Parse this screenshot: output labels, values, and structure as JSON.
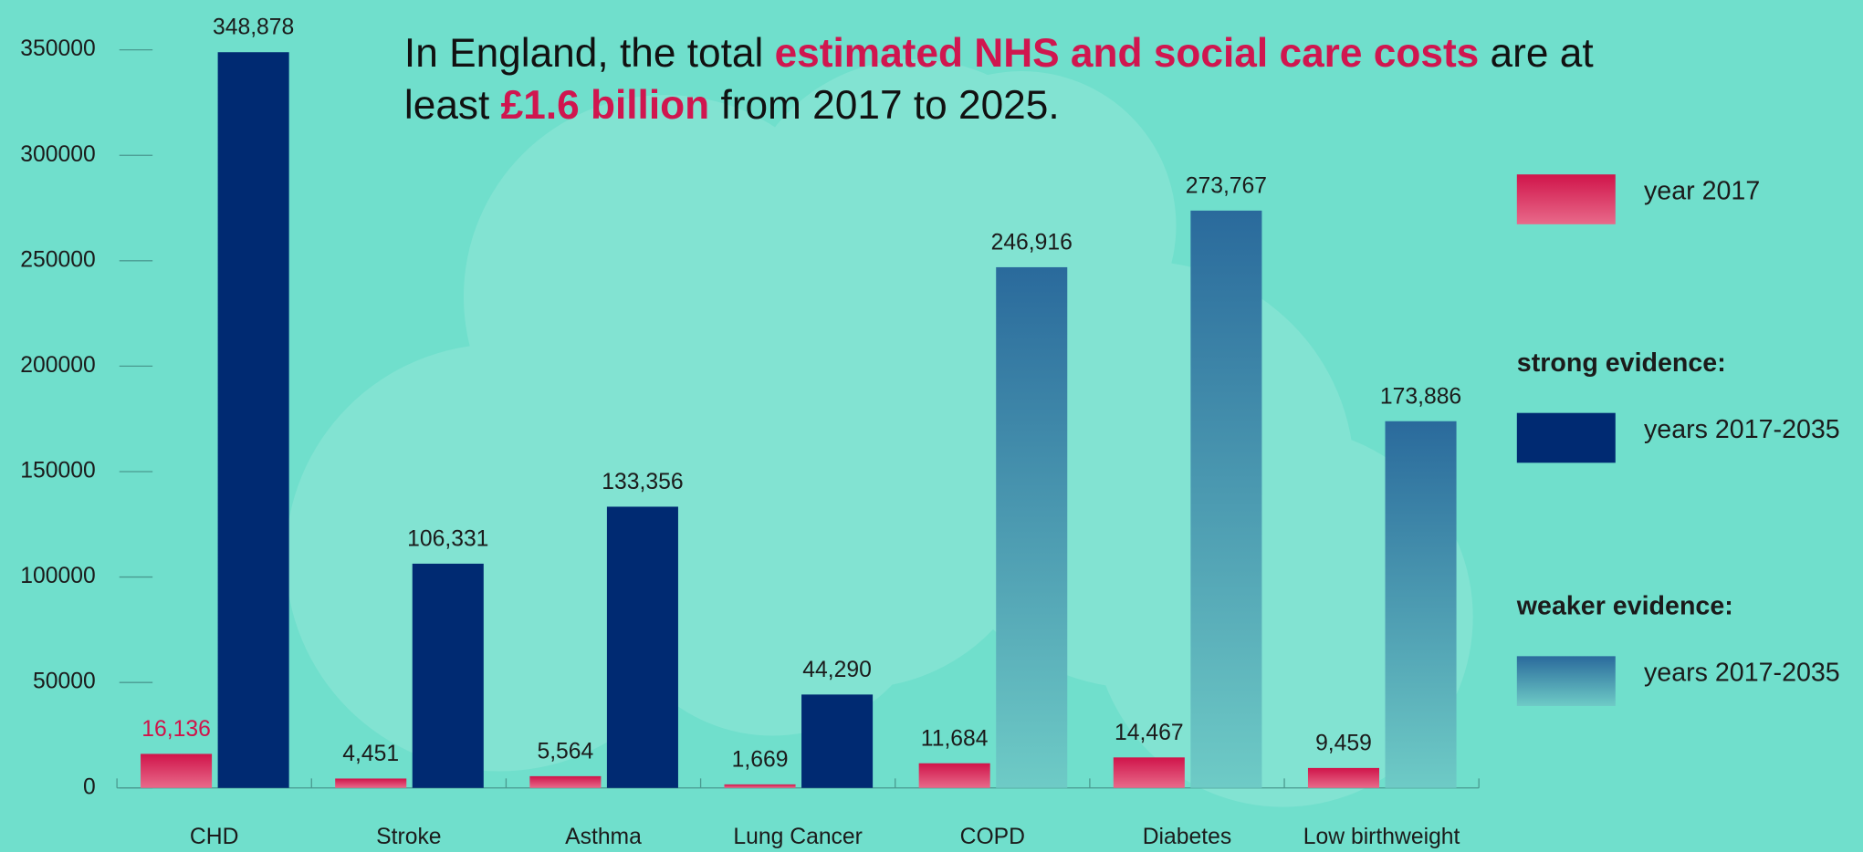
{
  "chart_data": {
    "type": "bar",
    "title": [
      "In England, the total ",
      "estimated NHS and social care costs",
      " are at",
      "least ",
      "£1.6 billion",
      " from 2017 to 2025."
    ],
    "categories": [
      "CHD",
      "Stroke",
      "Asthma",
      "Lung Cancer",
      "COPD",
      "Diabetes",
      "Low birthweight"
    ],
    "series": [
      {
        "name": "year 2017",
        "color": "#d0144a",
        "values": [
          16136,
          4451,
          5564,
          1669,
          11684,
          14467,
          9459
        ],
        "value_labels": [
          "16,136",
          "4,451",
          "5,564",
          "1,669",
          "11,684",
          "14,467",
          "9,459"
        ]
      },
      {
        "name": "years 2017-2035",
        "group": "strong evidence:",
        "color": "#002a72",
        "values": [
          348878,
          106331,
          133356,
          44290,
          null,
          null,
          null
        ],
        "value_labels": [
          "348,878",
          "106,331",
          "133,356",
          "44,290",
          null,
          null,
          null
        ]
      },
      {
        "name": "years 2017-2035",
        "group": "weaker evidence:",
        "color": "#2a6a9c",
        "values": [
          null,
          null,
          null,
          null,
          246916,
          273767,
          173886
        ],
        "value_labels": [
          null,
          null,
          null,
          null,
          "246,916",
          "273,767",
          "173,886"
        ]
      }
    ],
    "ylim": [
      0,
      350000
    ],
    "yticks": [
      0,
      50000,
      100000,
      150000,
      200000,
      250000,
      300000,
      350000
    ]
  }
}
